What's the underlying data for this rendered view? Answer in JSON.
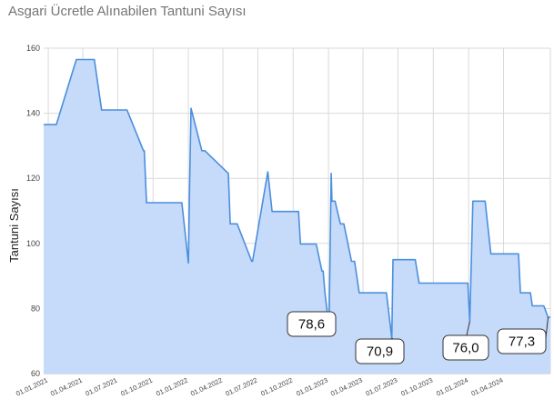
{
  "chart_data": {
    "type": "area",
    "title": "Asgari Ücretle Alınabilen Tantuni Sayısı",
    "xlabel": "",
    "ylabel": "Tantuni Sayısı",
    "ylim": [
      60,
      160
    ],
    "yticks": [
      60,
      80,
      100,
      120,
      140,
      160
    ],
    "xlim": [
      "2020-12-20",
      "2024-08-01"
    ],
    "xticks": [
      {
        "date": "2021-01-01",
        "label": "01.01.2021"
      },
      {
        "date": "2021-04-01",
        "label": "01.04.2021"
      },
      {
        "date": "2021-07-01",
        "label": "01.07.2021"
      },
      {
        "date": "2021-10-01",
        "label": "01.10.2021"
      },
      {
        "date": "2022-01-01",
        "label": "01.01.2022"
      },
      {
        "date": "2022-04-01",
        "label": "01.04.2022"
      },
      {
        "date": "2022-07-01",
        "label": "01.07.2022"
      },
      {
        "date": "2022-10-01",
        "label": "01.10.2022"
      },
      {
        "date": "2023-01-01",
        "label": "01.01.2023"
      },
      {
        "date": "2023-04-01",
        "label": "01.04.2023"
      },
      {
        "date": "2023-07-01",
        "label": "01.07.2023"
      },
      {
        "date": "2023-10-01",
        "label": "01.10.2023"
      },
      {
        "date": "2024-01-01",
        "label": "01.01.2024"
      },
      {
        "date": "2024-04-01",
        "label": "01.04.2024"
      }
    ],
    "grid": true,
    "color": "#4a8fde",
    "fill_color": "#c6dafa",
    "series": [
      {
        "x": [
          "2020-12-20",
          "2021-01-22",
          "2021-03-15",
          "2021-05-01",
          "2021-05-20",
          "2021-07-25",
          "2021-09-06",
          "2021-09-08",
          "2021-09-14",
          "2021-11-20",
          "2021-12-15",
          "2022-01-01",
          "2022-01-04",
          "2022-01-08",
          "2022-02-05",
          "2022-02-07",
          "2022-02-13",
          "2022-04-15",
          "2022-04-20",
          "2022-05-01",
          "2022-05-03",
          "2022-05-08",
          "2022-06-15",
          "2022-06-17",
          "2022-07-27",
          "2022-08-07",
          "2022-10-15",
          "2022-10-20",
          "2022-11-30",
          "2022-12-15",
          "2022-12-18",
          "2022-12-23",
          "2022-12-29",
          "2023-01-03",
          "2023-01-08",
          "2023-01-10",
          "2023-01-18",
          "2023-02-01",
          "2023-02-10",
          "2023-03-02",
          "2023-03-10",
          "2023-03-22",
          "2023-04-01",
          "2023-06-01",
          "2023-06-15",
          "2023-06-18",
          "2023-07-01",
          "2023-08-15",
          "2023-08-25",
          "2023-12-24",
          "2023-12-30",
          "2024-01-04",
          "2024-01-12",
          "2024-02-13",
          "2024-02-28",
          "2024-05-10",
          "2024-05-15",
          "2024-06-10",
          "2024-06-15",
          "2024-07-06",
          "2024-07-15",
          "2024-07-26",
          "2024-08-01"
        ],
        "values": [
          136.5,
          136.5,
          156.5,
          156.5,
          141.0,
          141.0,
          128.5,
          128.5,
          112.5,
          112.5,
          112.5,
          94.0,
          116.0,
          141.5,
          128.5,
          128.5,
          128.5,
          121.5,
          106.0,
          106.0,
          106.0,
          106.0,
          94.5,
          94.5,
          122.0,
          109.8,
          109.8,
          99.8,
          99.8,
          91.5,
          91.5,
          84.6,
          78.6,
          78.6,
          121.5,
          113.0,
          113.0,
          106.0,
          106.0,
          94.5,
          94.5,
          84.8,
          84.8,
          84.8,
          70.9,
          95.0,
          95.0,
          95.0,
          87.8,
          87.8,
          87.8,
          76.0,
          113.0,
          113.0,
          96.8,
          96.8,
          84.8,
          84.8,
          80.8,
          80.8,
          80.8,
          77.3,
          77.3
        ]
      }
    ],
    "annotations": [
      {
        "label": "78,6",
        "date": "2022-12-29",
        "value": 78.6
      },
      {
        "label": "70,9",
        "date": "2023-06-15",
        "value": 70.9
      },
      {
        "label": "76,0",
        "date": "2024-01-04",
        "value": 76.0
      },
      {
        "label": "77,3",
        "date": "2024-07-26",
        "value": 77.3
      }
    ]
  }
}
